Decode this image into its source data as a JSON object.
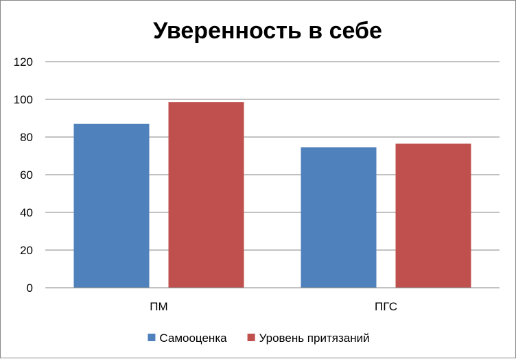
{
  "chart_data": {
    "type": "bar",
    "title": "Уверенность в себе",
    "categories": [
      "ПМ",
      "ПГС"
    ],
    "series": [
      {
        "name": "Самооценка",
        "values": [
          87,
          74.5
        ],
        "color": "#4F81BD"
      },
      {
        "name": "Уровень притязаний",
        "values": [
          98.5,
          76.5
        ],
        "color": "#C0504D"
      }
    ],
    "ylim": [
      0,
      120
    ],
    "yticks": [
      0,
      20,
      40,
      60,
      80,
      100,
      120
    ],
    "xlabel": "",
    "ylabel": "",
    "grid": true,
    "legend_position": "bottom"
  }
}
